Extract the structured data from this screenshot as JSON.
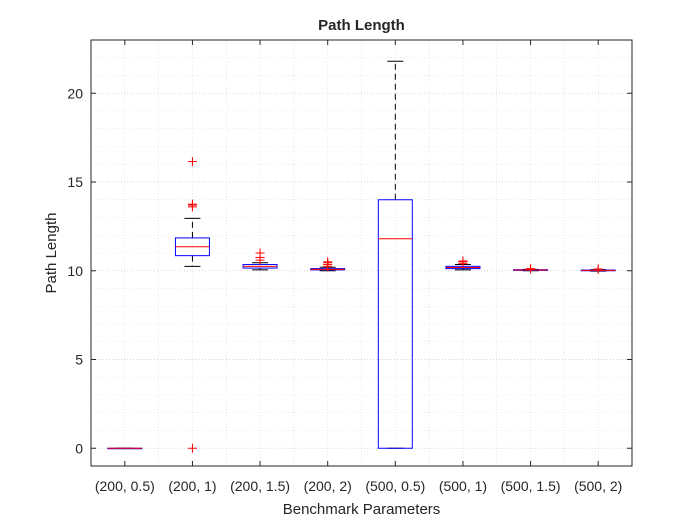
{
  "chart_data": {
    "type": "box",
    "title": "Path Length",
    "xlabel": "Benchmark Parameters",
    "ylabel": "Path Length",
    "ylim": [
      -1,
      23
    ],
    "yticks": [
      0,
      5,
      10,
      15,
      20
    ],
    "grid": "major and minor (dotted)",
    "categories": [
      "(200, 0.5)",
      "(200, 1)",
      "(200, 1.5)",
      "(200, 2)",
      "(500, 0.5)",
      "(500, 1)",
      "(500, 1.5)",
      "(500, 2)"
    ],
    "boxes": [
      {
        "q1": 0,
        "median": 0,
        "q3": 0,
        "whisker_low": 0,
        "whisker_high": 0,
        "outliers": []
      },
      {
        "q1": 10.85,
        "median": 11.35,
        "q3": 11.85,
        "whisker_low": 10.25,
        "whisker_high": 12.95,
        "outliers": [
          0,
          13.6,
          13.7,
          13.75,
          16.15
        ]
      },
      {
        "q1": 10.15,
        "median": 10.25,
        "q3": 10.35,
        "whisker_low": 10.05,
        "whisker_high": 10.45,
        "outliers": [
          10.6,
          10.75,
          11.0
        ]
      },
      {
        "q1": 10.05,
        "median": 10.08,
        "q3": 10.12,
        "whisker_low": 10.0,
        "whisker_high": 10.2,
        "outliers": [
          10.25,
          10.35,
          10.45,
          10.5
        ]
      },
      {
        "q1": 0,
        "median": 11.8,
        "q3": 14.0,
        "whisker_low": 0,
        "whisker_high": 21.8,
        "outliers": []
      },
      {
        "q1": 10.12,
        "median": 10.18,
        "q3": 10.25,
        "whisker_low": 10.05,
        "whisker_high": 10.35,
        "outliers": [
          10.4,
          10.5,
          10.55
        ]
      },
      {
        "q1": 10.02,
        "median": 10.04,
        "q3": 10.06,
        "whisker_low": 10.0,
        "whisker_high": 10.08,
        "outliers": [
          10.1,
          10.12
        ]
      },
      {
        "q1": 10.0,
        "median": 10.02,
        "q3": 10.04,
        "whisker_low": 9.98,
        "whisker_high": 10.06,
        "outliers": [
          10.08,
          10.1
        ]
      }
    ],
    "colors": {
      "box": "#0000ff",
      "median": "#ff0000",
      "outlier": "#ff0000",
      "whisker": "#000000",
      "grid": "#d9d9d9",
      "axis": "#262626"
    }
  }
}
